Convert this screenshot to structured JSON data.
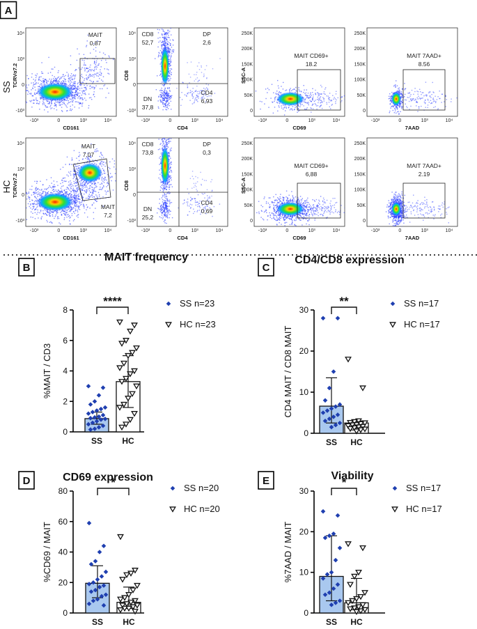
{
  "panel_a": {
    "letter": "A",
    "rows": [
      {
        "label": "SS",
        "plots": [
          {
            "type": "mait",
            "ylabel": "TCRVα7.2",
            "xlabel": "CD161",
            "gates": [
              {
                "name": "MAIT",
                "value": "0,87"
              }
            ]
          },
          {
            "type": "quad",
            "ylabel": "CD8",
            "xlabel": "CD4",
            "quads": {
              "CD8": "52,7",
              "DP": "2,6",
              "DN": "37,8",
              "CD4": "6,93"
            }
          },
          {
            "type": "gate",
            "ylabel": "SSC-A",
            "xlabel": "CD69",
            "gate_name": "MAIT CD69+",
            "gate_value": "18.2"
          },
          {
            "type": "gate",
            "ylabel": "",
            "xlabel": "7AAD",
            "gate_name": "MAIT 7AAD+",
            "gate_value": "8.56"
          }
        ]
      },
      {
        "label": "HC",
        "plots": [
          {
            "type": "mait",
            "ylabel": "TCRVα7.2",
            "xlabel": "CD161",
            "gates": [
              {
                "name": "MAIT",
                "value": "7,07"
              },
              {
                "name": "MAIT",
                "value": "7,2"
              }
            ]
          },
          {
            "type": "quad",
            "ylabel": "CD8",
            "xlabel": "CD4",
            "quads": {
              "CD8": "73,8",
              "DP": "0,3",
              "DN": "25,2",
              "CD4": "0,69"
            }
          },
          {
            "type": "gate",
            "ylabel": "SSC-A",
            "xlabel": "CD69",
            "gate_name": "MAIT CD69+",
            "gate_value": "6,88"
          },
          {
            "type": "gate",
            "ylabel": "",
            "xlabel": "7AAD",
            "gate_name": "MAIT 7AAD+",
            "gate_value": "2.19"
          }
        ]
      }
    ],
    "quad_names": [
      "CD8",
      "DP",
      "DN",
      "CD4"
    ],
    "tick_labels": {
      "log_y": [
        "10⁴",
        "10³",
        "0",
        "-10³"
      ],
      "log_x": [
        "-10³",
        "0",
        "10³",
        "10⁴"
      ],
      "ssc_y": [
        "250K",
        "200K",
        "150K",
        "100K",
        "50K",
        "0"
      ]
    }
  },
  "chart_data": [
    {
      "type": "bar",
      "panel": "B",
      "title": "MAIT frequency",
      "ylabel": "%MAIT / CD3",
      "categories": [
        "SS",
        "HC"
      ],
      "ylim": [
        0,
        8
      ],
      "yticks": [
        0,
        2,
        4,
        6,
        8
      ],
      "significance": "****",
      "legend": [
        {
          "name": "SS n=23",
          "marker": "diamond"
        },
        {
          "name": "HC n=23",
          "marker": "triangle"
        }
      ],
      "series": [
        {
          "name": "SS",
          "mean": 0.87,
          "sd_low": 0.5,
          "sd_high": 1.3,
          "points": [
            3.0,
            2.9,
            2.4,
            2.0,
            1.8,
            1.6,
            1.5,
            1.4,
            1.3,
            1.2,
            1.1,
            1.0,
            0.95,
            0.9,
            0.85,
            0.8,
            0.7,
            0.6,
            0.5,
            0.4,
            0.3,
            0.2,
            0.15
          ]
        },
        {
          "name": "HC",
          "mean": 3.3,
          "sd_low": 1.6,
          "sd_high": 5.0,
          "points": [
            7.2,
            7.0,
            6.6,
            6.0,
            5.8,
            5.5,
            5.2,
            5.0,
            4.5,
            4.2,
            4.0,
            3.8,
            3.5,
            3.3,
            3.0,
            2.5,
            2.2,
            1.8,
            1.6,
            1.2,
            0.8,
            0.5,
            0.3
          ]
        }
      ]
    },
    {
      "type": "bar",
      "panel": "C",
      "title": "CD4/CD8 expression",
      "ylabel": "CD4 MAIT / CD8 MAIT",
      "categories": [
        "SS",
        "HC"
      ],
      "ylim": [
        0,
        30
      ],
      "yticks": [
        0,
        10,
        20,
        30
      ],
      "significance": "**",
      "legend": [
        {
          "name": "SS n=17",
          "marker": "diamond"
        },
        {
          "name": "HC n=17",
          "marker": "triangle"
        }
      ],
      "series": [
        {
          "name": "SS",
          "mean": 6.6,
          "sd_low": 2.5,
          "sd_high": 13.5,
          "points": [
            28.0,
            28.0,
            15.0,
            11.0,
            8.0,
            7.0,
            6.5,
            6.0,
            5.5,
            5.0,
            4.5,
            4.0,
            3.5,
            3.0,
            2.5,
            2.0,
            1.5
          ]
        },
        {
          "name": "HC",
          "mean": 2.5,
          "sd_low": 0.8,
          "sd_high": 3.0,
          "points": [
            18.0,
            11.0,
            3.0,
            2.8,
            2.6,
            2.5,
            2.3,
            2.1,
            2.0,
            1.8,
            1.6,
            1.5,
            1.3,
            1.1,
            1.0,
            0.8,
            0.5
          ]
        }
      ]
    },
    {
      "type": "bar",
      "panel": "D",
      "title": "CD69 expression",
      "ylabel": "%CD69 / MAIT",
      "categories": [
        "SS",
        "HC"
      ],
      "ylim": [
        0,
        80
      ],
      "yticks": [
        0,
        20,
        40,
        60,
        80
      ],
      "significance": "*",
      "legend": [
        {
          "name": "SS n=20",
          "marker": "diamond"
        },
        {
          "name": "HC n=20",
          "marker": "triangle"
        }
      ],
      "series": [
        {
          "name": "SS",
          "mean": 19.5,
          "sd_low": 10.0,
          "sd_high": 31.0,
          "points": [
            59.0,
            44.0,
            40.0,
            34.0,
            32.0,
            27.0,
            24.0,
            22.0,
            20.0,
            19.0,
            18.0,
            17.0,
            15.0,
            14.0,
            12.0,
            11.0,
            9.0,
            8.0,
            6.0,
            5.0
          ]
        },
        {
          "name": "HC",
          "mean": 7.0,
          "sd_low": 3.0,
          "sd_high": 17.0,
          "points": [
            50.0,
            28.0,
            26.0,
            25.0,
            22.0,
            18.0,
            15.0,
            12.0,
            10.0,
            9.0,
            8.0,
            7.0,
            6.0,
            5.0,
            5.0,
            4.0,
            3.0,
            3.0,
            2.0,
            1.0
          ]
        }
      ]
    },
    {
      "type": "bar",
      "panel": "E",
      "title": "Viability",
      "ylabel": "%7AAD / MAIT",
      "categories": [
        "SS",
        "HC"
      ],
      "ylim": [
        0,
        30
      ],
      "yticks": [
        0,
        10,
        20,
        30
      ],
      "significance": "*",
      "legend": [
        {
          "name": "SS n=17",
          "marker": "diamond"
        },
        {
          "name": "HC n=17",
          "marker": "triangle"
        }
      ],
      "series": [
        {
          "name": "SS",
          "mean": 9.0,
          "sd_low": 3.0,
          "sd_high": 19.0,
          "points": [
            25.0,
            24.0,
            19.5,
            19.0,
            18.5,
            16.0,
            13.0,
            10.0,
            9.5,
            8.5,
            7.0,
            6.0,
            5.0,
            4.5,
            3.0,
            2.5,
            2.0
          ]
        },
        {
          "name": "HC",
          "mean": 2.5,
          "sd_low": 0.8,
          "sd_high": 8.5,
          "points": [
            17.0,
            16.0,
            10.0,
            9.0,
            7.0,
            5.0,
            4.0,
            3.5,
            3.0,
            2.5,
            2.0,
            1.5,
            1.2,
            1.0,
            0.8,
            0.5,
            0.3
          ]
        }
      ]
    }
  ],
  "colors": {
    "bar_ss": "#a9c8ef",
    "marker_ss": "#1f3fb0",
    "heat_low": "#1428ff",
    "heat_mid": "#00e000",
    "heat_high": "#ff2000"
  }
}
